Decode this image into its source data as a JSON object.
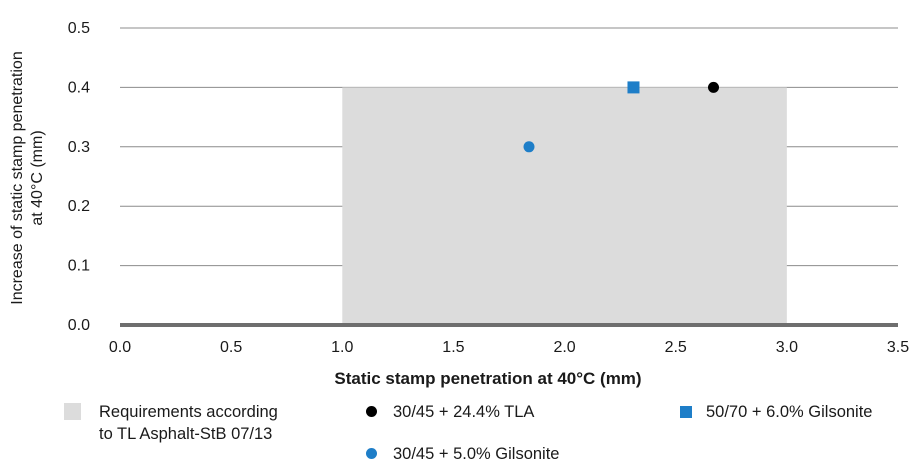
{
  "chart_data": {
    "type": "scatter",
    "xlabel": "Static stamp penetration at 40°C (mm)",
    "ylabel": "Increase of static stamp penetration\nat 40°C (mm)",
    "xlim": [
      0,
      3.5
    ],
    "ylim": [
      0,
      0.5
    ],
    "x_ticks": [
      "0.0",
      "0.5",
      "1.0",
      "1.5",
      "2.0",
      "2.5",
      "3.0",
      "3.5"
    ],
    "y_ticks": [
      "0.0",
      "0.1",
      "0.2",
      "0.3",
      "0.4",
      "0.5"
    ],
    "grid": "horizontal",
    "region": {
      "name": "Requirements according\nto TL Asphalt-StB 07/13",
      "x": [
        1.0,
        3.0
      ],
      "y": [
        0,
        0.4
      ],
      "color": "#dcdcdc"
    },
    "series": [
      {
        "name": "30/45 + 24.4% TLA",
        "marker": "circle",
        "color": "#000000",
        "x": [
          2.67
        ],
        "y": [
          0.4
        ]
      },
      {
        "name": "30/45 + 5.0% Gilsonite",
        "marker": "circle",
        "color": "#1e7ec8",
        "x": [
          1.84
        ],
        "y": [
          0.3
        ]
      },
      {
        "name": "50/70 + 6.0% Gilsonite",
        "marker": "square",
        "color": "#1e7ec8",
        "x": [
          2.31
        ],
        "y": [
          0.4
        ]
      }
    ],
    "legend_position": "bottom"
  }
}
